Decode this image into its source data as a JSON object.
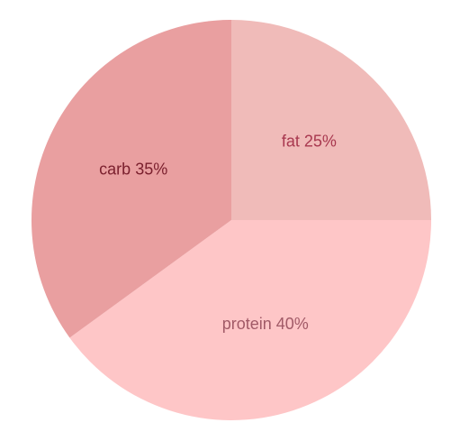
{
  "chart_data": {
    "type": "pie",
    "start_angle_deg": 0,
    "direction": "clockwise",
    "slices": [
      {
        "label": "fat 25%",
        "name": "fat",
        "value": 25,
        "color": "#f0bbb9",
        "label_color": "#a8384f"
      },
      {
        "label": "protein 40%",
        "name": "protein",
        "value": 40,
        "color": "#fec6c7",
        "label_color": "#a15a67"
      },
      {
        "label": "carb 35%",
        "name": "carb",
        "value": 35,
        "color": "#e99fa0",
        "label_color": "#7a1f2d"
      }
    ]
  }
}
